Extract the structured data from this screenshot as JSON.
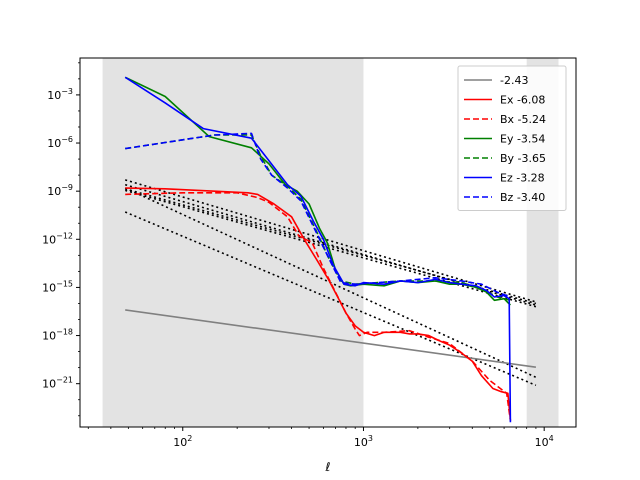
{
  "chart_data": {
    "type": "line",
    "title": "",
    "xlabel": "ℓ",
    "ylabel": "",
    "xscale": "log",
    "yscale": "log",
    "xlim": [
      27,
      15000
    ],
    "ylim_exp": [
      -23.7,
      -0.7
    ],
    "grid": false,
    "legend_position": "top-right",
    "x_ticks": [
      {
        "value": 100,
        "base": "10",
        "exp": "2"
      },
      {
        "value": 1000,
        "base": "10",
        "exp": "3"
      },
      {
        "value": 10000,
        "base": "10",
        "exp": "4"
      }
    ],
    "y_ticks": [
      {
        "exp_value": -3,
        "base": "10",
        "exp": "−3"
      },
      {
        "exp_value": -6,
        "base": "10",
        "exp": "−6"
      },
      {
        "exp_value": -9,
        "base": "10",
        "exp": "−9"
      },
      {
        "exp_value": -12,
        "base": "10",
        "exp": "−12"
      },
      {
        "exp_value": -15,
        "base": "10",
        "exp": "−15"
      },
      {
        "exp_value": -18,
        "base": "10",
        "exp": "−18"
      },
      {
        "exp_value": -21,
        "base": "10",
        "exp": "−21"
      }
    ],
    "shaded_regions": [
      {
        "x0": 36,
        "x1": 1000,
        "color": "#e3e3e3"
      },
      {
        "x0": 8000,
        "x1": 12000,
        "color": "#e3e3e3"
      }
    ],
    "series": [
      {
        "name": "-2.43",
        "color": "#808080",
        "dash": "solid",
        "points": [
          [
            48,
            -16.4
          ],
          [
            9000,
            -19.97
          ]
        ]
      },
      {
        "name": "Ex -6.08",
        "color": "#ff0000",
        "dash": "solid",
        "points": [
          [
            48,
            -8.8
          ],
          [
            80,
            -8.85
          ],
          [
            150,
            -9.0
          ],
          [
            230,
            -9.1
          ],
          [
            260,
            -9.2
          ],
          [
            320,
            -9.8
          ],
          [
            400,
            -10.6
          ],
          [
            470,
            -12.0
          ],
          [
            560,
            -13.4
          ],
          [
            640,
            -14.5
          ],
          [
            720,
            -15.6
          ],
          [
            800,
            -16.6
          ],
          [
            900,
            -17.4
          ],
          [
            1000,
            -17.8
          ],
          [
            1150,
            -18.0
          ],
          [
            1300,
            -17.8
          ],
          [
            1600,
            -17.8
          ],
          [
            1800,
            -17.9
          ],
          [
            2000,
            -17.9
          ],
          [
            2300,
            -18.0
          ],
          [
            2600,
            -18.3
          ],
          [
            3000,
            -18.6
          ],
          [
            3500,
            -19.1
          ],
          [
            4000,
            -19.6
          ],
          [
            4500,
            -20.5
          ],
          [
            5200,
            -21.3
          ],
          [
            5800,
            -21.5
          ],
          [
            6300,
            -21.6
          ],
          [
            6500,
            -23.3
          ]
        ]
      },
      {
        "name": "Bx -5.24",
        "color": "#ff0000",
        "dash": "dashed",
        "points": [
          [
            48,
            -9.2
          ],
          [
            100,
            -9.1
          ],
          [
            200,
            -9.1
          ],
          [
            260,
            -9.4
          ],
          [
            300,
            -9.7
          ],
          [
            380,
            -10.6
          ],
          [
            440,
            -11.8
          ],
          [
            520,
            -12.2
          ],
          [
            600,
            -13.8
          ],
          [
            700,
            -15.3
          ],
          [
            800,
            -16.6
          ],
          [
            900,
            -17.6
          ],
          [
            950,
            -18.0
          ],
          [
            1050,
            -17.8
          ],
          [
            1300,
            -17.8
          ],
          [
            1800,
            -17.7
          ],
          [
            2300,
            -18.1
          ],
          [
            3000,
            -18.5
          ],
          [
            4000,
            -19.6
          ],
          [
            5000,
            -20.8
          ],
          [
            6200,
            -21.6
          ],
          [
            6500,
            -23.3
          ]
        ]
      },
      {
        "name": "Ey -3.54",
        "color": "#008000",
        "dash": "solid",
        "points": [
          [
            48,
            -1.9
          ],
          [
            80,
            -3.1
          ],
          [
            140,
            -5.6
          ],
          [
            240,
            -6.3
          ],
          [
            300,
            -7.3
          ],
          [
            370,
            -8.6
          ],
          [
            430,
            -9.0
          ],
          [
            500,
            -9.8
          ],
          [
            570,
            -11.3
          ],
          [
            630,
            -12.2
          ],
          [
            700,
            -13.9
          ],
          [
            780,
            -14.8
          ],
          [
            850,
            -14.9
          ],
          [
            1000,
            -14.8
          ],
          [
            1300,
            -14.9
          ],
          [
            1600,
            -14.6
          ],
          [
            2000,
            -14.7
          ],
          [
            2500,
            -14.6
          ],
          [
            3000,
            -14.8
          ],
          [
            3500,
            -14.8
          ],
          [
            4200,
            -15.0
          ],
          [
            4800,
            -15.3
          ],
          [
            5300,
            -15.8
          ],
          [
            6000,
            -15.7
          ],
          [
            6500,
            -16.1
          ]
        ]
      },
      {
        "name": "By -3.65",
        "color": "#008000",
        "dash": "dashed",
        "points": [
          [
            48,
            -6.35
          ],
          [
            100,
            -5.8
          ],
          [
            150,
            -5.5
          ],
          [
            240,
            -5.5
          ],
          [
            270,
            -6.8
          ],
          [
            310,
            -8.0
          ],
          [
            380,
            -8.7
          ],
          [
            450,
            -9.5
          ],
          [
            550,
            -11.5
          ],
          [
            650,
            -13.3
          ],
          [
            750,
            -14.6
          ],
          [
            900,
            -14.8
          ],
          [
            1200,
            -14.7
          ],
          [
            1600,
            -14.6
          ],
          [
            2500,
            -14.6
          ],
          [
            3500,
            -14.7
          ],
          [
            4500,
            -15.1
          ],
          [
            5500,
            -15.6
          ],
          [
            6500,
            -15.8
          ]
        ]
      },
      {
        "name": "Ez -3.28",
        "color": "#0000ff",
        "dash": "solid",
        "points": [
          [
            48,
            -1.9
          ],
          [
            80,
            -3.5
          ],
          [
            130,
            -5.1
          ],
          [
            240,
            -5.7
          ],
          [
            300,
            -7.1
          ],
          [
            380,
            -8.6
          ],
          [
            450,
            -9.3
          ],
          [
            530,
            -10.9
          ],
          [
            600,
            -12.0
          ],
          [
            680,
            -13.6
          ],
          [
            780,
            -14.8
          ],
          [
            900,
            -14.9
          ],
          [
            1000,
            -14.7
          ],
          [
            1300,
            -14.8
          ],
          [
            1600,
            -14.6
          ],
          [
            2000,
            -14.7
          ],
          [
            2500,
            -14.5
          ],
          [
            3000,
            -14.7
          ],
          [
            3500,
            -14.8
          ],
          [
            4200,
            -14.9
          ],
          [
            4800,
            -15.2
          ],
          [
            5300,
            -15.6
          ],
          [
            6000,
            -15.5
          ],
          [
            6400,
            -15.7
          ],
          [
            6500,
            -23.4
          ]
        ]
      },
      {
        "name": "Bz -3.40",
        "color": "#0000ff",
        "dash": "dashed",
        "points": [
          [
            48,
            -6.35
          ],
          [
            100,
            -5.8
          ],
          [
            150,
            -5.5
          ],
          [
            240,
            -5.4
          ],
          [
            270,
            -7.0
          ],
          [
            310,
            -8.0
          ],
          [
            380,
            -8.8
          ],
          [
            450,
            -9.6
          ],
          [
            550,
            -11.6
          ],
          [
            650,
            -13.3
          ],
          [
            750,
            -14.7
          ],
          [
            900,
            -14.8
          ],
          [
            1200,
            -14.7
          ],
          [
            1600,
            -14.6
          ],
          [
            2500,
            -14.4
          ],
          [
            3500,
            -14.6
          ],
          [
            4500,
            -14.8
          ],
          [
            5500,
            -15.3
          ],
          [
            6500,
            -15.6
          ]
        ]
      }
    ],
    "fit_lines": [
      {
        "color": "#000000",
        "dash": "dotted",
        "points": [
          [
            48,
            -8.3
          ],
          [
            9000,
            -15.9
          ]
        ]
      },
      {
        "color": "#000000",
        "dash": "dotted",
        "points": [
          [
            48,
            -8.6
          ],
          [
            9000,
            -16.1
          ]
        ]
      },
      {
        "color": "#000000",
        "dash": "dotted",
        "points": [
          [
            48,
            -8.85
          ],
          [
            9000,
            -16.0
          ]
        ]
      },
      {
        "color": "#000000",
        "dash": "dotted",
        "points": [
          [
            48,
            -8.95
          ],
          [
            9000,
            -16.2
          ]
        ]
      },
      {
        "color": "#000000",
        "dash": "dotted",
        "points": [
          [
            48,
            -8.8
          ],
          [
            9000,
            -20.6
          ]
        ]
      },
      {
        "color": "#000000",
        "dash": "dotted",
        "points": [
          [
            48,
            -10.3
          ],
          [
            9000,
            -21.1
          ]
        ]
      }
    ]
  }
}
